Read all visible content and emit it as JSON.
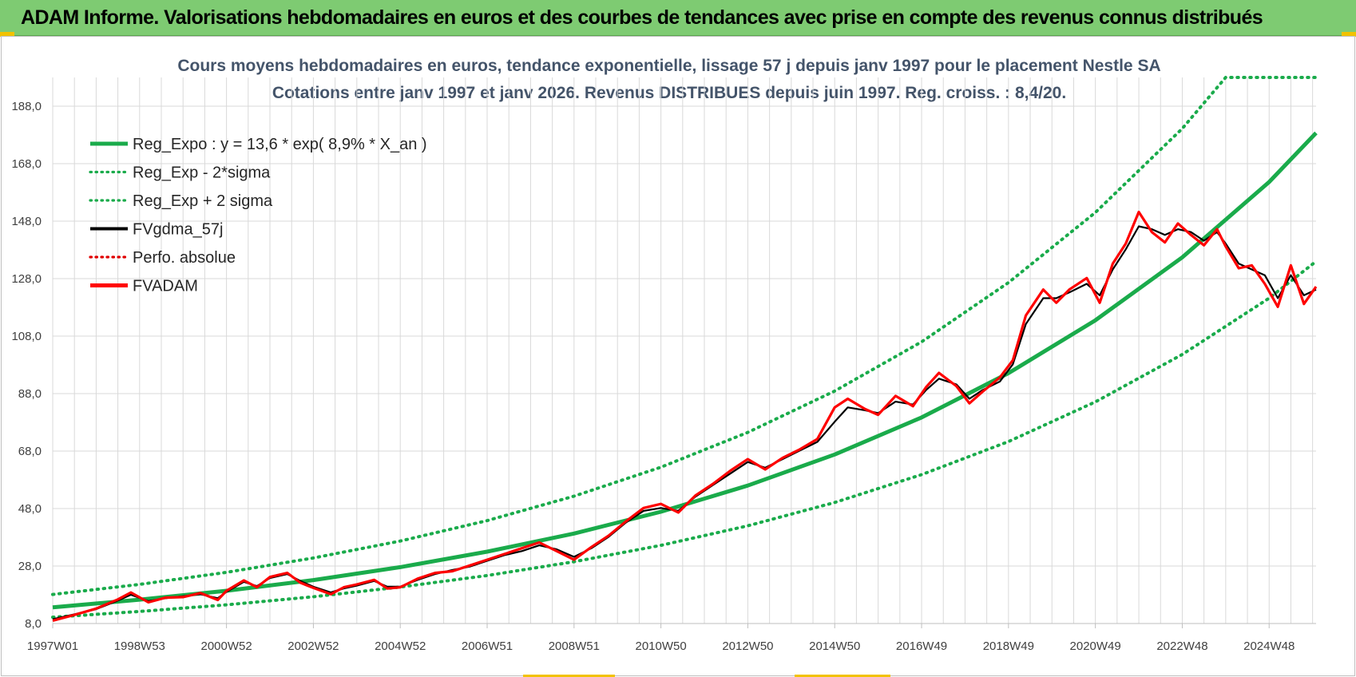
{
  "banner": {
    "text": "ADAM Informe. Valorisations hebdomadaires en euros et des courbes de tendances avec prise en compte des revenus connus distribués"
  },
  "colors": {
    "banner_bg": "#7ecb72",
    "trend": "#1aab4b",
    "fvgdma": "#000000",
    "fvadam": "#ff0000",
    "perfo": "#e00000",
    "title": "#44546a",
    "grid": "#d9d9d9"
  },
  "chart_data": {
    "type": "line",
    "title": "Cours moyens hebdomadaires en euros, tendance exponentielle, lissage 57 j depuis janv 1997 pour le placement Nestle SA",
    "subtitle": "Cotations entre janv 1997 et janv 2026. Revenus DISTRIBUES depuis juin 1997. Reg. croiss. : 8,4/20.",
    "xlabel": "",
    "ylabel": "",
    "ylim": [
      8,
      198
    ],
    "xlim": [
      1997.0,
      2026.08
    ],
    "yticks": [
      8,
      28,
      48,
      68,
      88,
      108,
      128,
      148,
      168,
      188
    ],
    "ytick_labels": [
      "8,0",
      "28,0",
      "48,0",
      "68,0",
      "88,0",
      "108,0",
      "128,0",
      "148,0",
      "168,0",
      "188,0"
    ],
    "x_tick_labels": [
      "1997W01",
      "1998W53",
      "2000W52",
      "2002W52",
      "2004W52",
      "2006W51",
      "2008W51",
      "2010W50",
      "2012W50",
      "2014W50",
      "2016W49",
      "2018W49",
      "2020W49",
      "2022W48",
      "2024W48"
    ],
    "x_tick_positions": [
      1997.0,
      1999.0,
      2001.0,
      2003.0,
      2005.0,
      2007.0,
      2009.0,
      2011.0,
      2013.0,
      2015.0,
      2017.0,
      2019.0,
      2021.0,
      2023.0,
      2025.0
    ],
    "grid": true,
    "legend_position": "top-left",
    "series": [
      {
        "name": "Reg_Expo : y = 13,6 * exp( 8,9% *  X_an )",
        "style": "solid-thick",
        "color": "#1aab4b",
        "x": [
          1997.0,
          1999.0,
          2001.0,
          2003.0,
          2005.0,
          2007.0,
          2009.0,
          2011.0,
          2013.0,
          2015.0,
          2017.0,
          2019.0,
          2021.0,
          2023.0,
          2025.0,
          2026.08
        ],
        "values": [
          13.6,
          16.3,
          19.4,
          23.1,
          27.6,
          33.0,
          39.3,
          46.9,
          56.0,
          66.8,
          79.7,
          95.1,
          113.5,
          135.4,
          161.6,
          178.7
        ]
      },
      {
        "name": "Reg_Exp - 2*sigma",
        "style": "dotted",
        "color": "#1aab4b",
        "x": [
          1997.0,
          1999.0,
          2001.0,
          2003.0,
          2005.0,
          2007.0,
          2009.0,
          2011.0,
          2013.0,
          2015.0,
          2017.0,
          2019.0,
          2021.0,
          2023.0,
          2025.0,
          2026.08
        ],
        "values": [
          10.2,
          12.2,
          14.5,
          17.3,
          20.7,
          24.7,
          29.5,
          35.2,
          42.0,
          50.1,
          59.8,
          71.3,
          85.1,
          101.6,
          121.2,
          134.0
        ]
      },
      {
        "name": "Reg_Exp + 2 sigma",
        "style": "dotted",
        "color": "#1aab4b",
        "x": [
          1997.0,
          1999.0,
          2001.0,
          2003.0,
          2005.0,
          2007.0,
          2009.0,
          2011.0,
          2013.0,
          2015.0,
          2017.0,
          2019.0,
          2021.0,
          2023.0,
          2024.0,
          2026.08
        ],
        "values": [
          18.1,
          21.6,
          25.8,
          30.8,
          36.7,
          43.8,
          52.3,
          62.4,
          74.5,
          88.9,
          106.0,
          126.6,
          151.0,
          180.2,
          198.0,
          198.0
        ]
      },
      {
        "name": "FVgdma_57j",
        "style": "solid",
        "color": "#000000",
        "x": [
          1997.0,
          1997.5,
          1998.0,
          1998.5,
          1998.8,
          1999.2,
          1999.6,
          2000.0,
          2000.4,
          2000.8,
          2001.0,
          2001.4,
          2001.7,
          2002.0,
          2002.4,
          2002.7,
          2003.0,
          2003.4,
          2003.7,
          2004.0,
          2004.4,
          2004.7,
          2005.0,
          2005.4,
          2005.8,
          2006.2,
          2006.6,
          2007.0,
          2007.4,
          2007.8,
          2008.2,
          2008.6,
          2009.0,
          2009.4,
          2009.8,
          2010.2,
          2010.6,
          2011.0,
          2011.4,
          2011.8,
          2012.2,
          2012.6,
          2013.0,
          2013.4,
          2013.8,
          2014.2,
          2014.6,
          2015.0,
          2015.3,
          2015.7,
          2016.0,
          2016.4,
          2016.8,
          2017.1,
          2017.4,
          2017.8,
          2018.1,
          2018.4,
          2018.8,
          2019.1,
          2019.4,
          2019.8,
          2020.1,
          2020.4,
          2020.8,
          2021.1,
          2021.4,
          2021.7,
          2022.0,
          2022.3,
          2022.6,
          2022.9,
          2023.2,
          2023.5,
          2023.8,
          2024.0,
          2024.3,
          2024.6,
          2024.9,
          2025.2,
          2025.5,
          2025.8,
          2026.08
        ],
        "values": [
          9.5,
          11.2,
          13.0,
          16.0,
          18.0,
          15.8,
          16.8,
          17.5,
          18.2,
          16.8,
          19.0,
          22.5,
          21.0,
          23.8,
          25.2,
          22.8,
          20.8,
          18.8,
          20.2,
          21.2,
          22.8,
          20.8,
          20.8,
          23.2,
          25.2,
          26.6,
          27.8,
          29.8,
          31.8,
          33.2,
          35.2,
          33.8,
          31.2,
          34.2,
          38.2,
          43.2,
          47.2,
          48.2,
          47.2,
          52.2,
          56.2,
          60.2,
          64.2,
          62.2,
          65.2,
          68.2,
          71.2,
          78.2,
          83.2,
          82.2,
          81.2,
          85.2,
          84.2,
          89.2,
          93.2,
          91.2,
          86.2,
          89.2,
          92.2,
          98.2,
          112.2,
          121.2,
          121.2,
          123.2,
          126.2,
          122.2,
          131.2,
          138.2,
          146.2,
          145.2,
          143.2,
          145.2,
          144.2,
          141.2,
          144.2,
          140.2,
          133.2,
          131.2,
          129.2,
          121.2,
          129.2,
          122.2,
          124.2
        ]
      },
      {
        "name": "Perfo. absolue",
        "style": "dotted",
        "color": "#e00000",
        "x": [],
        "values": []
      },
      {
        "name": "FVADAM",
        "style": "solid-thick",
        "color": "#ff0000",
        "x": [
          1997.0,
          1997.5,
          1998.0,
          1998.5,
          1998.8,
          1999.2,
          1999.6,
          2000.0,
          2000.4,
          2000.8,
          2001.0,
          2001.4,
          2001.7,
          2002.0,
          2002.4,
          2002.7,
          2003.0,
          2003.4,
          2003.7,
          2004.0,
          2004.4,
          2004.7,
          2005.0,
          2005.4,
          2005.8,
          2006.2,
          2006.6,
          2007.0,
          2007.4,
          2007.8,
          2008.2,
          2008.6,
          2009.0,
          2009.4,
          2009.8,
          2010.2,
          2010.6,
          2011.0,
          2011.4,
          2011.8,
          2012.2,
          2012.6,
          2013.0,
          2013.4,
          2013.8,
          2014.2,
          2014.6,
          2015.0,
          2015.3,
          2015.7,
          2016.0,
          2016.4,
          2016.8,
          2017.1,
          2017.4,
          2017.8,
          2018.1,
          2018.4,
          2018.8,
          2019.1,
          2019.4,
          2019.8,
          2020.1,
          2020.4,
          2020.8,
          2021.1,
          2021.4,
          2021.7,
          2022.0,
          2022.3,
          2022.6,
          2022.9,
          2023.2,
          2023.5,
          2023.8,
          2024.0,
          2024.3,
          2024.6,
          2024.9,
          2025.2,
          2025.5,
          2025.8,
          2026.08
        ],
        "values": [
          9.0,
          11.0,
          13.2,
          16.4,
          18.8,
          15.4,
          17.0,
          17.2,
          18.6,
          16.2,
          19.4,
          23.0,
          20.6,
          24.2,
          25.6,
          22.2,
          20.4,
          18.2,
          20.6,
          21.6,
          23.2,
          20.2,
          20.6,
          23.6,
          25.6,
          26.2,
          28.2,
          30.2,
          32.2,
          34.2,
          36.2,
          33.2,
          30.2,
          34.6,
          38.6,
          43.6,
          48.2,
          49.6,
          46.6,
          52.6,
          56.6,
          61.2,
          65.2,
          61.6,
          65.6,
          68.6,
          72.2,
          83.2,
          86.2,
          82.6,
          80.6,
          87.2,
          83.6,
          90.2,
          95.2,
          90.6,
          84.6,
          88.6,
          93.6,
          99.6,
          115.2,
          124.2,
          119.6,
          124.2,
          128.2,
          119.6,
          133.2,
          140.2,
          151.2,
          144.2,
          140.6,
          147.2,
          143.2,
          139.6,
          145.2,
          139.2,
          131.6,
          132.6,
          126.2,
          118.2,
          132.6,
          119.2,
          125.2
        ]
      }
    ]
  }
}
